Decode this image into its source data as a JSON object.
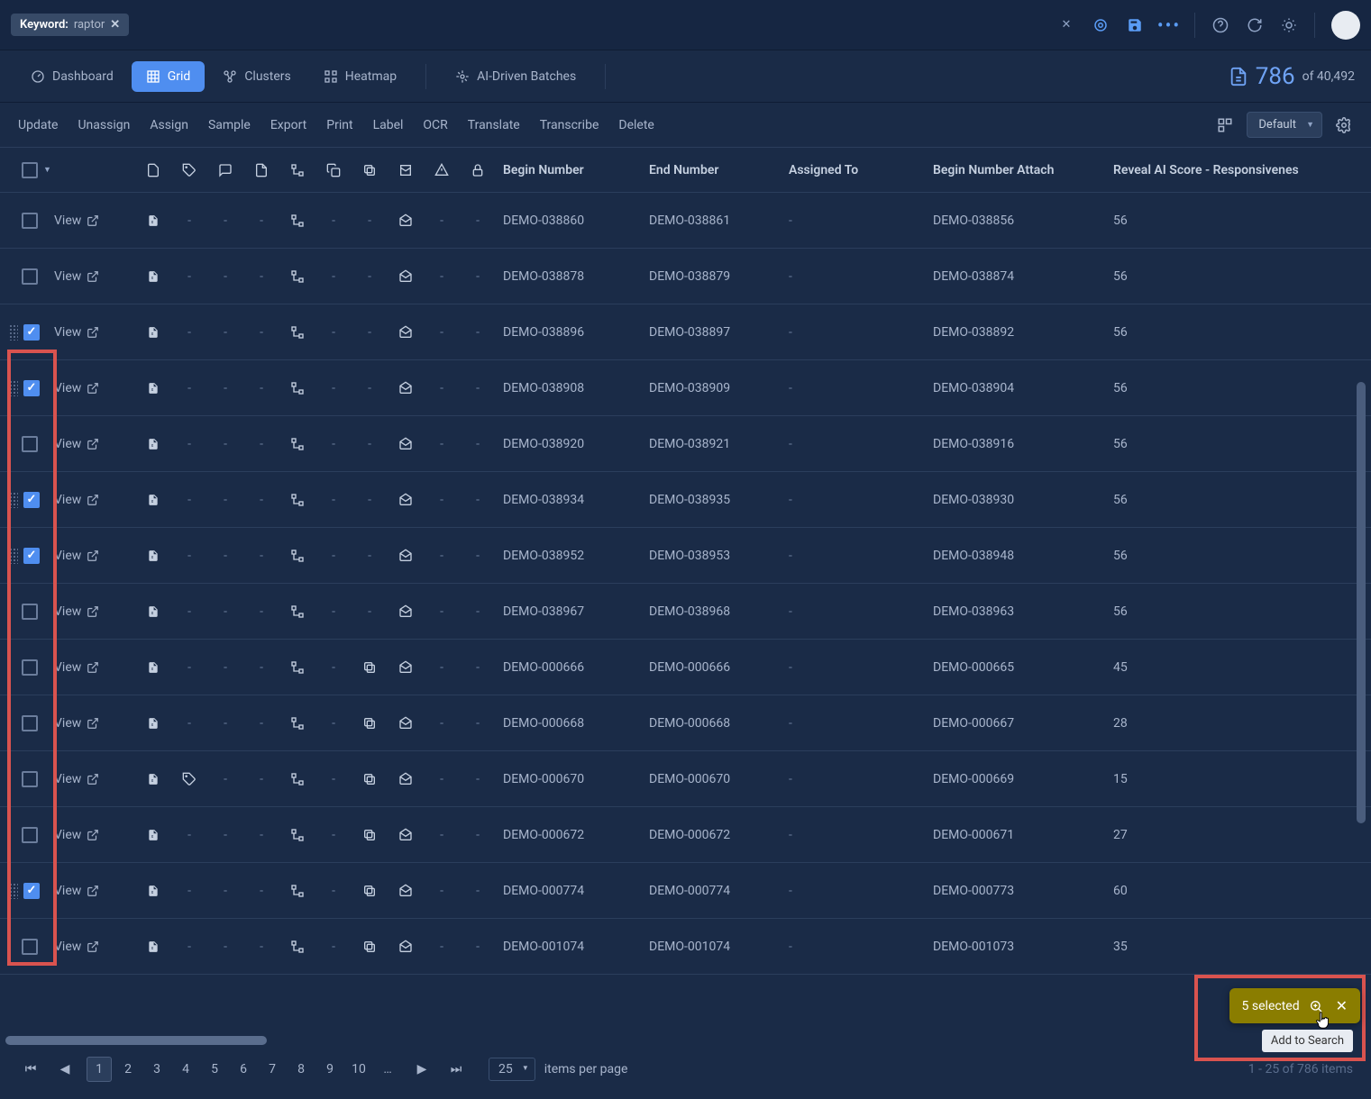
{
  "topbar": {
    "keyword_label": "Keyword:",
    "keyword_value": "raptor"
  },
  "viewbar": {
    "dashboard": "Dashboard",
    "grid": "Grid",
    "clusters": "Clusters",
    "heatmap": "Heatmap",
    "ai_batches": "AI-Driven Batches",
    "count": "786",
    "of_total": "of 40,492"
  },
  "actions": {
    "update": "Update",
    "unassign": "Unassign",
    "assign": "Assign",
    "sample": "Sample",
    "export": "Export",
    "print": "Print",
    "label": "Label",
    "ocr": "OCR",
    "translate": "Translate",
    "transcribe": "Transcribe",
    "delete": "Delete",
    "default_view": "Default"
  },
  "columns": {
    "begin": "Begin Number",
    "end": "End Number",
    "assigned": "Assigned To",
    "attach": "Begin Number Attach",
    "score": "Reveal AI Score - Responsivenes"
  },
  "view_label": "View",
  "rows": [
    {
      "checked": false,
      "drag": false,
      "dup": false,
      "tag": false,
      "begin": "DEMO-038860",
      "end": "DEMO-038861",
      "assigned": "-",
      "attach": "DEMO-038856",
      "score": "56"
    },
    {
      "checked": false,
      "drag": false,
      "dup": false,
      "tag": false,
      "begin": "DEMO-038878",
      "end": "DEMO-038879",
      "assigned": "-",
      "attach": "DEMO-038874",
      "score": "56"
    },
    {
      "checked": true,
      "drag": true,
      "dup": false,
      "tag": false,
      "begin": "DEMO-038896",
      "end": "DEMO-038897",
      "assigned": "-",
      "attach": "DEMO-038892",
      "score": "56"
    },
    {
      "checked": true,
      "drag": true,
      "dup": false,
      "tag": false,
      "begin": "DEMO-038908",
      "end": "DEMO-038909",
      "assigned": "-",
      "attach": "DEMO-038904",
      "score": "56"
    },
    {
      "checked": false,
      "drag": false,
      "dup": false,
      "tag": false,
      "begin": "DEMO-038920",
      "end": "DEMO-038921",
      "assigned": "-",
      "attach": "DEMO-038916",
      "score": "56"
    },
    {
      "checked": true,
      "drag": true,
      "dup": false,
      "tag": false,
      "begin": "DEMO-038934",
      "end": "DEMO-038935",
      "assigned": "-",
      "attach": "DEMO-038930",
      "score": "56"
    },
    {
      "checked": true,
      "drag": true,
      "dup": false,
      "tag": false,
      "begin": "DEMO-038952",
      "end": "DEMO-038953",
      "assigned": "-",
      "attach": "DEMO-038948",
      "score": "56"
    },
    {
      "checked": false,
      "drag": false,
      "dup": false,
      "tag": false,
      "begin": "DEMO-038967",
      "end": "DEMO-038968",
      "assigned": "-",
      "attach": "DEMO-038963",
      "score": "56"
    },
    {
      "checked": false,
      "drag": false,
      "dup": true,
      "tag": false,
      "begin": "DEMO-000666",
      "end": "DEMO-000666",
      "assigned": "-",
      "attach": "DEMO-000665",
      "score": "45"
    },
    {
      "checked": false,
      "drag": false,
      "dup": true,
      "tag": false,
      "begin": "DEMO-000668",
      "end": "DEMO-000668",
      "assigned": "-",
      "attach": "DEMO-000667",
      "score": "28"
    },
    {
      "checked": false,
      "drag": false,
      "dup": true,
      "tag": true,
      "begin": "DEMO-000670",
      "end": "DEMO-000670",
      "assigned": "-",
      "attach": "DEMO-000669",
      "score": "15"
    },
    {
      "checked": false,
      "drag": false,
      "dup": true,
      "tag": false,
      "begin": "DEMO-000672",
      "end": "DEMO-000672",
      "assigned": "-",
      "attach": "DEMO-000671",
      "score": "27"
    },
    {
      "checked": true,
      "drag": true,
      "dup": true,
      "tag": false,
      "begin": "DEMO-000774",
      "end": "DEMO-000774",
      "assigned": "-",
      "attach": "DEMO-000773",
      "score": "60"
    },
    {
      "checked": false,
      "drag": false,
      "dup": true,
      "tag": false,
      "begin": "DEMO-001074",
      "end": "DEMO-001074",
      "assigned": "-",
      "attach": "DEMO-001073",
      "score": "35"
    }
  ],
  "pagination": {
    "pages": [
      "1",
      "2",
      "3",
      "4",
      "5",
      "6",
      "7",
      "8",
      "9",
      "10",
      "…"
    ],
    "page_size": "25",
    "per_page_label": "items per page",
    "status": "1 - 25 of 786 items"
  },
  "toast": {
    "text": "5 selected",
    "tooltip": "Add to Search"
  },
  "colors": {
    "bg": "#1a2b47",
    "accent": "#4f8ef0",
    "highlight": "#d9534f",
    "toast_bg": "#8a7d00"
  }
}
